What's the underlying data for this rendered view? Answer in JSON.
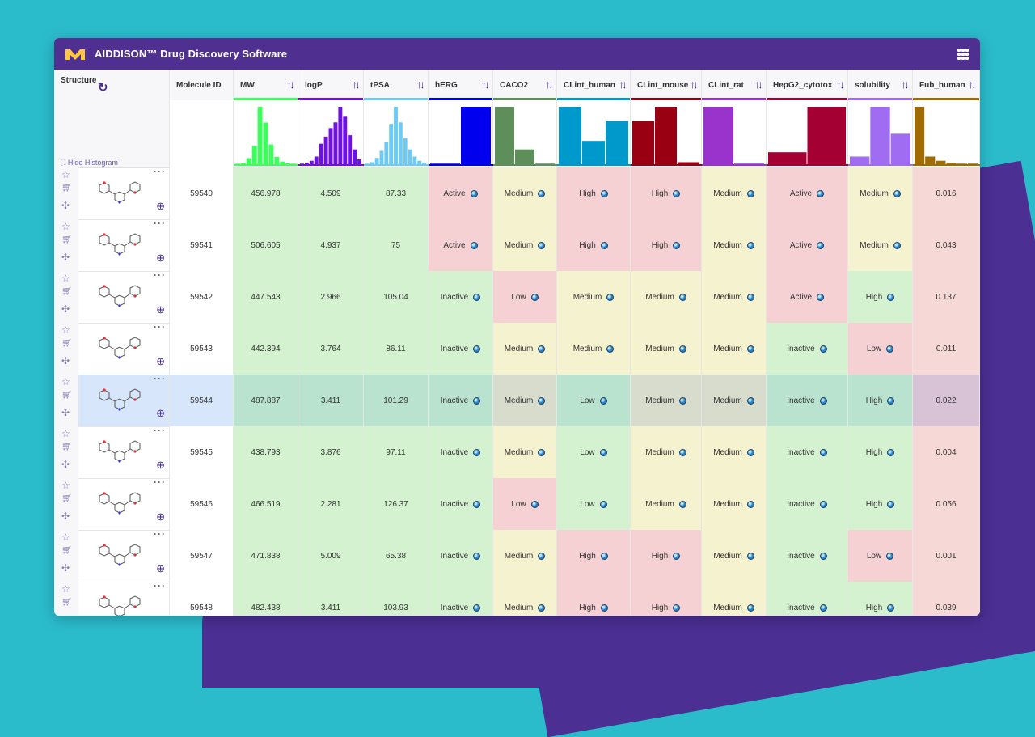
{
  "app": {
    "title": "AIDDISON™ Drug Discovery Software"
  },
  "structure_header": {
    "label": "Structure",
    "hide_histogram": "Hide Histogram"
  },
  "columns": [
    {
      "key": "id",
      "label": "Molecule ID",
      "sortable": false
    },
    {
      "key": "mw",
      "label": "MW",
      "color": "#3cff5c"
    },
    {
      "key": "logp",
      "label": "logP",
      "color": "#6e10e8"
    },
    {
      "key": "tpsa",
      "label": "tPSA",
      "color": "#6ccaf5"
    },
    {
      "key": "herg",
      "label": "hERG",
      "color": "#0000ee"
    },
    {
      "key": "caco2",
      "label": "CACO2",
      "color": "#5e8f5a"
    },
    {
      "key": "clint_human",
      "label": "CLint_human",
      "color": "#0099cc"
    },
    {
      "key": "clint_mouse",
      "label": "CLint_mouse",
      "color": "#990011"
    },
    {
      "key": "clint_rat",
      "label": "CLint_rat",
      "color": "#9933cc"
    },
    {
      "key": "hepg2",
      "label": "HepG2_cytotox",
      "color": "#a50033"
    },
    {
      "key": "solubility",
      "label": "solubility",
      "color": "#a06cf2"
    },
    {
      "key": "fub",
      "label": "Fub_human",
      "color": "#a06b00"
    }
  ],
  "histograms": {
    "mw": [
      2,
      3,
      10,
      28,
      85,
      62,
      30,
      12,
      5,
      3,
      2
    ],
    "logp": [
      2,
      3,
      6,
      12,
      30,
      40,
      52,
      60,
      82,
      68,
      42,
      22,
      8
    ],
    "tpsa": [
      2,
      4,
      10,
      20,
      32,
      58,
      82,
      60,
      38,
      22,
      12,
      6,
      3
    ],
    "herg": [
      2,
      82
    ],
    "caco2": [
      82,
      22,
      2
    ],
    "clint_human": [
      82,
      34,
      62
    ],
    "clint_mouse": [
      62,
      82,
      4
    ],
    "clint_rat": [
      82,
      2
    ],
    "hepg2": [
      18,
      82
    ],
    "solubility": [
      12,
      82,
      44
    ],
    "fub": [
      82,
      12,
      6,
      3,
      2,
      2
    ]
  },
  "rows": [
    {
      "id": "59540",
      "mw": "456.978",
      "logp": "4.509",
      "tpsa": "87.33",
      "herg": "Active",
      "caco2": "Medium",
      "clint_human": "High",
      "clint_mouse": "High",
      "clint_rat": "Medium",
      "hepg2": "Active",
      "solubility": "Medium",
      "fub": "0.016"
    },
    {
      "id": "59541",
      "mw": "506.605",
      "logp": "4.937",
      "tpsa": "75",
      "herg": "Active",
      "caco2": "Medium",
      "clint_human": "High",
      "clint_mouse": "High",
      "clint_rat": "Medium",
      "hepg2": "Active",
      "solubility": "Medium",
      "fub": "0.043"
    },
    {
      "id": "59542",
      "mw": "447.543",
      "logp": "2.966",
      "tpsa": "105.04",
      "herg": "Inactive",
      "caco2": "Low",
      "clint_human": "Medium",
      "clint_mouse": "Medium",
      "clint_rat": "Medium",
      "hepg2": "Active",
      "solubility": "High",
      "fub": "0.137"
    },
    {
      "id": "59543",
      "mw": "442.394",
      "logp": "3.764",
      "tpsa": "86.11",
      "herg": "Inactive",
      "caco2": "Medium",
      "clint_human": "Medium",
      "clint_mouse": "Medium",
      "clint_rat": "Medium",
      "hepg2": "Inactive",
      "solubility": "Low",
      "fub": "0.011"
    },
    {
      "id": "59544",
      "mw": "487.887",
      "logp": "3.411",
      "tpsa": "101.29",
      "herg": "Inactive",
      "caco2": "Medium",
      "clint_human": "Low",
      "clint_mouse": "Medium",
      "clint_rat": "Medium",
      "hepg2": "Inactive",
      "solubility": "High",
      "fub": "0.022",
      "selected": true
    },
    {
      "id": "59545",
      "mw": "438.793",
      "logp": "3.876",
      "tpsa": "97.11",
      "herg": "Inactive",
      "caco2": "Medium",
      "clint_human": "Low",
      "clint_mouse": "Medium",
      "clint_rat": "Medium",
      "hepg2": "Inactive",
      "solubility": "High",
      "fub": "0.004"
    },
    {
      "id": "59546",
      "mw": "466.519",
      "logp": "2.281",
      "tpsa": "126.37",
      "herg": "Inactive",
      "caco2": "Low",
      "clint_human": "Low",
      "clint_mouse": "Medium",
      "clint_rat": "Medium",
      "hepg2": "Inactive",
      "solubility": "High",
      "fub": "0.056"
    },
    {
      "id": "59547",
      "mw": "471.838",
      "logp": "5.009",
      "tpsa": "65.38",
      "herg": "Inactive",
      "caco2": "Medium",
      "clint_human": "High",
      "clint_mouse": "High",
      "clint_rat": "Medium",
      "hepg2": "Inactive",
      "solubility": "Low",
      "fub": "0.001"
    },
    {
      "id": "59548",
      "mw": "482.438",
      "logp": "3.411",
      "tpsa": "103.93",
      "herg": "Inactive",
      "caco2": "Medium",
      "clint_human": "High",
      "clint_mouse": "High",
      "clint_rat": "Medium",
      "hepg2": "Inactive",
      "solubility": "High",
      "fub": "0.039"
    }
  ],
  "colors": {
    "good": "#d4f2d0",
    "bad": "#f5d1d3",
    "mid": "#f5f3cf",
    "selected": "#d8e6fb"
  }
}
